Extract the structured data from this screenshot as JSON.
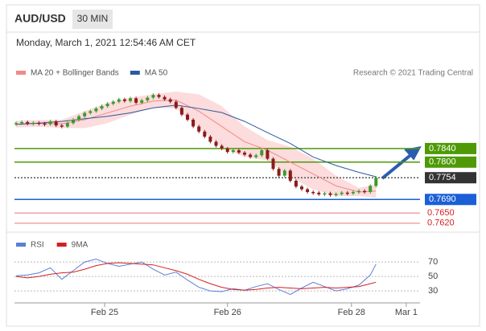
{
  "header": {
    "symbol": "AUD/USD",
    "timeframe": "30 MIN",
    "datetime": "Monday, March 1, 2021 12:54:46 AM CET"
  },
  "chart_data": [
    {
      "type": "candlestick",
      "source": "Research © 2021 Trading Central",
      "close": [
        0.7915,
        0.7918,
        0.7913,
        0.7916,
        0.7914,
        0.7912,
        0.792,
        0.7908,
        0.7905,
        0.7915,
        0.7925,
        0.7935,
        0.7945,
        0.795,
        0.7958,
        0.7965,
        0.7972,
        0.7978,
        0.7985,
        0.798,
        0.7988,
        0.7975,
        0.7982,
        0.799,
        0.7998,
        0.7992,
        0.7985,
        0.7978,
        0.796,
        0.794,
        0.7925,
        0.7905,
        0.789,
        0.7875,
        0.786,
        0.7848,
        0.784,
        0.783,
        0.7835,
        0.7828,
        0.7822,
        0.7815,
        0.782,
        0.7835,
        0.781,
        0.778,
        0.776,
        0.7775,
        0.7745,
        0.7728,
        0.772,
        0.7712,
        0.771,
        0.7705,
        0.7708,
        0.7703,
        0.7706,
        0.771,
        0.7708,
        0.7712,
        0.7715,
        0.7712,
        0.773,
        0.7754
      ],
      "up_color": "#3a9a2a",
      "down_color": "#8b1a1a",
      "indicators": [
        {
          "name": "MA 20 + Bollinger Bands",
          "color": "#f08a8a",
          "band_color": "#fbd3d3",
          "x": [
            0,
            4,
            8,
            12,
            16,
            20,
            24,
            28,
            32,
            36,
            40,
            44,
            48,
            52,
            56,
            60,
            63
          ],
          "values": [
            0.7912,
            0.7914,
            0.7913,
            0.7925,
            0.7945,
            0.7965,
            0.798,
            0.7983,
            0.795,
            0.7905,
            0.786,
            0.7835,
            0.78,
            0.7765,
            0.773,
            0.7712,
            0.7715
          ],
          "upper": [
            0.7922,
            0.7924,
            0.7925,
            0.795,
            0.7975,
            0.799,
            0.8,
            0.8008,
            0.8,
            0.7965,
            0.7905,
            0.7865,
            0.7845,
            0.781,
            0.776,
            0.7724,
            0.7735
          ],
          "lower": [
            0.7902,
            0.7904,
            0.7901,
            0.79,
            0.7915,
            0.794,
            0.796,
            0.7958,
            0.79,
            0.7845,
            0.7815,
            0.7805,
            0.7755,
            0.772,
            0.77,
            0.77,
            0.7695
          ]
        },
        {
          "name": "MA 50",
          "color": "#2c5aa0",
          "x": [
            0,
            4,
            8,
            12,
            16,
            20,
            24,
            28,
            32,
            36,
            40,
            44,
            48,
            52,
            56,
            60,
            63
          ],
          "values": [
            0.7911,
            0.7915,
            0.792,
            0.7928,
            0.7935,
            0.7945,
            0.796,
            0.7968,
            0.7958,
            0.7946,
            0.792,
            0.7887,
            0.7855,
            0.7815,
            0.779,
            0.777,
            0.7757
          ]
        }
      ],
      "levels": [
        {
          "value": 0.784,
          "label": "0.7840",
          "color": "#4e9a06",
          "style": "box"
        },
        {
          "value": 0.78,
          "label": "0.7800",
          "color": "#4e9a06",
          "style": "box"
        },
        {
          "value": 0.7754,
          "label": "0.7754",
          "color": "#333333",
          "style": "box",
          "dash": true
        },
        {
          "value": 0.769,
          "label": "0.7690",
          "color": "#1a5fd6",
          "style": "box"
        },
        {
          "value": 0.765,
          "label": "0.7650",
          "color": "#d42020",
          "style": "text"
        },
        {
          "value": 0.762,
          "label": "0.7620",
          "color": "#d42020",
          "style": "text"
        }
      ],
      "xlim": [
        0,
        70
      ],
      "ylim": [
        0.7603,
        0.8041
      ],
      "xticks": [
        {
          "value": 15.5,
          "label": "Feb 25"
        },
        {
          "value": 37,
          "label": "Feb 26"
        },
        {
          "value": 58.7,
          "label": "Feb 28"
        },
        {
          "value": 68.3,
          "label": "Mar 1"
        }
      ]
    },
    {
      "type": "line",
      "xlim": [
        0,
        70
      ],
      "ylim": [
        19,
        79
      ],
      "yticks": [
        70,
        50,
        30
      ],
      "grid": true,
      "series": [
        {
          "name": "RSI",
          "color": "#5b7fd6",
          "x": [
            0,
            2,
            4,
            6,
            8,
            10,
            12,
            14,
            16,
            18,
            20,
            22,
            24,
            26,
            28,
            30,
            32,
            34,
            36,
            38,
            40,
            42,
            44,
            46,
            48,
            50,
            52,
            54,
            56,
            58,
            60,
            62,
            63
          ],
          "values": [
            51,
            52,
            55,
            62,
            46,
            58,
            70,
            74,
            68,
            64,
            67,
            70,
            60,
            52,
            56,
            45,
            35,
            30,
            29,
            33,
            31,
            36,
            40,
            32,
            25,
            34,
            42,
            36,
            30,
            33,
            38,
            52,
            67
          ]
        },
        {
          "name": "9MA",
          "color": "#d42020",
          "x": [
            0,
            2,
            4,
            6,
            8,
            10,
            12,
            14,
            16,
            18,
            20,
            22,
            24,
            26,
            28,
            30,
            32,
            34,
            36,
            38,
            40,
            42,
            44,
            46,
            48,
            50,
            52,
            54,
            56,
            58,
            60,
            62,
            63
          ],
          "values": [
            50,
            48,
            50,
            53,
            55,
            56,
            60,
            65,
            68,
            69,
            68,
            67,
            66,
            62,
            58,
            53,
            46,
            40,
            35,
            32,
            31,
            32,
            34,
            35,
            34,
            33,
            34,
            35,
            34,
            35,
            36,
            40,
            42
          ]
        }
      ]
    }
  ]
}
